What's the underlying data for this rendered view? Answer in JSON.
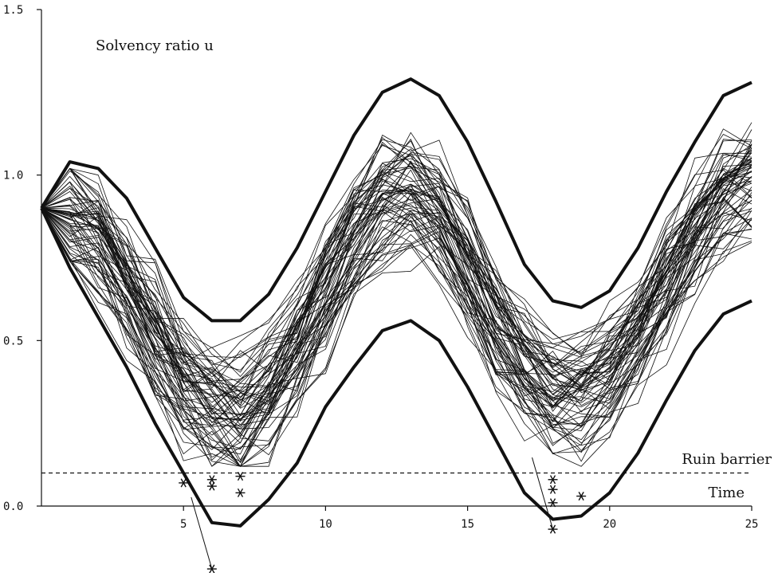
{
  "chart_data": {
    "type": "line",
    "title": "",
    "xlabel": "Time",
    "ylabel": "Solvency ratio u",
    "xlim": [
      0,
      25
    ],
    "ylim": [
      0,
      1.5
    ],
    "x_ticks": [
      5,
      10,
      15,
      20,
      25
    ],
    "x_tick_labels": [
      "5",
      "10",
      "15",
      "20",
      "25"
    ],
    "y_ticks": [
      0,
      0.5,
      1.0,
      1.5
    ],
    "y_tick_labels": [
      "0.0",
      "0.5",
      "1.0",
      "1.5"
    ],
    "grid": false,
    "ruin_barrier": {
      "label": "Ruin barrier",
      "value": 0.1
    },
    "envelopes": [
      {
        "x": [
          0,
          1,
          2,
          3,
          4,
          5,
          6,
          7,
          8,
          9,
          10,
          11,
          12,
          13,
          14,
          15,
          16,
          17,
          18,
          19,
          20,
          21,
          22,
          23,
          24,
          25
        ],
        "values": [
          0.9,
          1.04,
          1.02,
          0.93,
          0.78,
          0.63,
          0.56,
          0.56,
          0.64,
          0.78,
          0.95,
          1.12,
          1.25,
          1.29,
          1.24,
          1.1,
          0.92,
          0.73,
          0.62,
          0.6,
          0.65,
          0.78,
          0.95,
          1.1,
          1.24,
          1.28
        ]
      },
      {
        "x": [
          0,
          1,
          2,
          3,
          4,
          5,
          6,
          7,
          8,
          9,
          10,
          11,
          12,
          13,
          14,
          15,
          16,
          17,
          18,
          19,
          20,
          21,
          22,
          23,
          24,
          25
        ],
        "values": [
          0.9,
          0.72,
          0.57,
          0.42,
          0.25,
          0.1,
          -0.05,
          -0.06,
          0.02,
          0.13,
          0.3,
          0.42,
          0.53,
          0.56,
          0.5,
          0.36,
          0.2,
          0.04,
          -0.04,
          -0.03,
          0.04,
          0.16,
          0.32,
          0.47,
          0.58,
          0.62
        ]
      }
    ],
    "paths_mean_profile": {
      "x": [
        0,
        1,
        2,
        3,
        4,
        5,
        6,
        7,
        8,
        9,
        10,
        11,
        12,
        13,
        14,
        15,
        16,
        17,
        18,
        19,
        20,
        21,
        22,
        23,
        24,
        25
      ],
      "values": [
        0.9,
        0.86,
        0.79,
        0.66,
        0.51,
        0.37,
        0.29,
        0.27,
        0.34,
        0.47,
        0.63,
        0.8,
        0.91,
        0.94,
        0.87,
        0.7,
        0.53,
        0.4,
        0.33,
        0.33,
        0.39,
        0.51,
        0.66,
        0.82,
        0.93,
        0.98
      ]
    },
    "ruin_points": [
      {
        "x": 5.0,
        "y": 0.07
      },
      {
        "x": 6.0,
        "y": 0.06
      },
      {
        "x": 6.0,
        "y": 0.08
      },
      {
        "x": 7.0,
        "y": 0.04
      },
      {
        "x": 7.0,
        "y": 0.09
      },
      {
        "x": 6.0,
        "y": -0.19
      },
      {
        "x": 18.0,
        "y": 0.08
      },
      {
        "x": 18.0,
        "y": 0.05
      },
      {
        "x": 18.0,
        "y": 0.01
      },
      {
        "x": 18.0,
        "y": -0.07
      },
      {
        "x": 19.0,
        "y": 0.03
      }
    ]
  }
}
